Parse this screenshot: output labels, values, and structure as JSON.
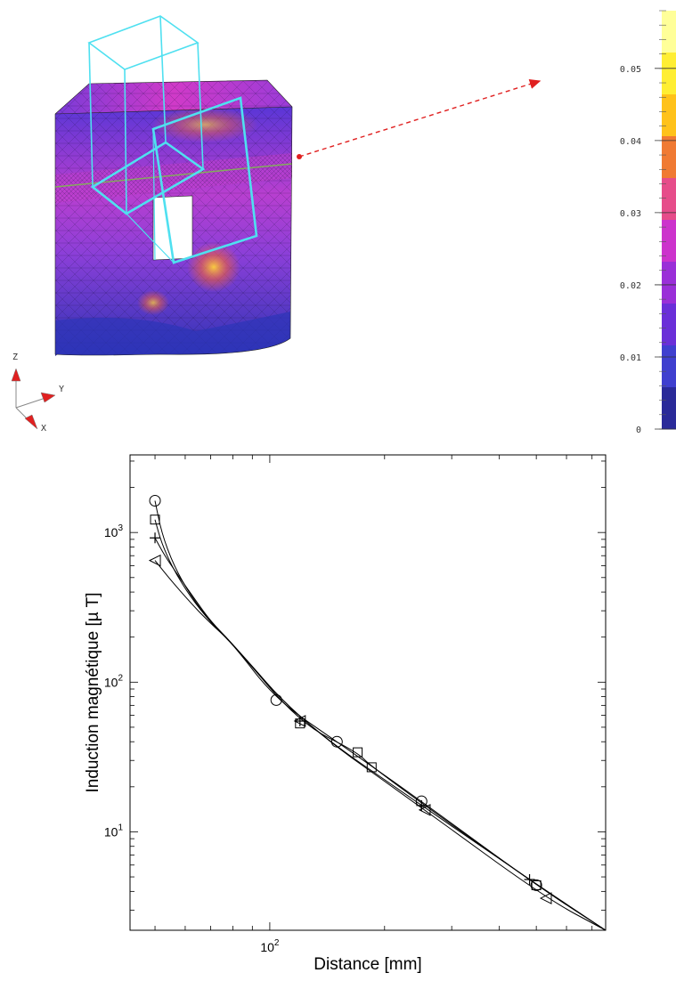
{
  "top_figure": {
    "colorbar": {
      "ticks": [
        "0",
        "0.01",
        "0.02",
        "0.03",
        "0.04",
        "0.05"
      ],
      "range": [
        0,
        0.058
      ],
      "colors": [
        "#2a2a99",
        "#3f3fcf",
        "#6a2fd8",
        "#9a2fd8",
        "#cc33cc",
        "#e64d8a",
        "#f07a33",
        "#ffc21a",
        "#ffee33",
        "#ffff99"
      ]
    },
    "axes": {
      "z": "Z",
      "y": "Y",
      "x": "X"
    },
    "colors": {
      "mesh_body": "#8a3fd8",
      "frame": "#4fe0f0",
      "arrow": "#e02020"
    }
  },
  "chart_data": {
    "type": "line",
    "title": "",
    "xlabel": "Distance  [mm]",
    "ylabel": "Induction magnétique  [µ T]",
    "xscale": "log",
    "yscale": "log",
    "xlim": [
      43,
      760
    ],
    "ylim": [
      2.2,
      3300
    ],
    "xticks": [
      {
        "value": 100,
        "mantissa": "10",
        "exponent": "2"
      }
    ],
    "yticks": [
      {
        "value": 10,
        "mantissa": "10",
        "exponent": "1"
      },
      {
        "value": 100,
        "mantissa": "10",
        "exponent": "2"
      },
      {
        "value": 1000,
        "mantissa": "10",
        "exponent": "3"
      }
    ],
    "series": [
      {
        "marker": "circle",
        "x": [
          50,
          52,
          56,
          62,
          70,
          80,
          104,
          150,
          250,
          500,
          760
        ],
        "y": [
          1630,
          1000,
          600,
          380,
          250,
          180,
          76,
          40,
          16,
          4.4,
          2.2
        ]
      },
      {
        "marker": "square",
        "x": [
          50,
          52,
          56,
          62,
          70,
          80,
          120,
          170,
          185,
          500,
          760
        ],
        "y": [
          1220,
          850,
          560,
          370,
          250,
          180,
          53,
          34,
          27,
          4.4,
          2.2
        ]
      },
      {
        "marker": "plus",
        "x": [
          50,
          53,
          58,
          64,
          70,
          80,
          120,
          250,
          480,
          760
        ],
        "y": [
          920,
          700,
          500,
          350,
          255,
          180,
          55,
          15,
          4.8,
          2.2
        ]
      },
      {
        "marker": "triangle-left",
        "x": [
          50,
          55,
          62,
          68,
          80,
          120,
          255,
          530,
          760
        ],
        "y": [
          650,
          480,
          340,
          265,
          180,
          55,
          14,
          3.6,
          2.2
        ]
      }
    ]
  }
}
